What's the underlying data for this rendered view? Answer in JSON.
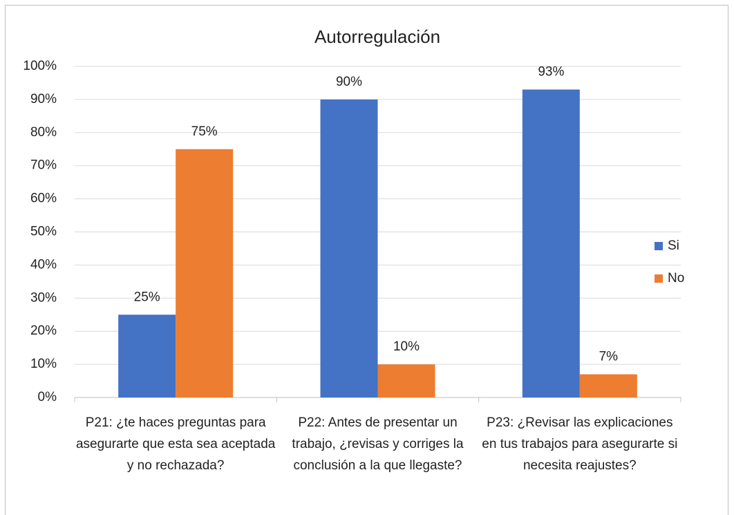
{
  "chart_data": {
    "type": "bar",
    "title": "Autorregulación",
    "categories": [
      "P21: ¿te haces preguntas para asegurarte que esta sea aceptada y no rechazada?",
      "P22: Antes de presentar un trabajo, ¿revisas y corriges la conclusión a la que llegaste?",
      "P23: ¿Revisar las explicaciones en tus trabajos para asegurarte si necesita reajustes?"
    ],
    "series": [
      {
        "name": "Si",
        "color": "#4472c4",
        "values": [
          25,
          90,
          93
        ],
        "value_labels": [
          "25%",
          "90%",
          "93%"
        ]
      },
      {
        "name": "No",
        "color": "#ed7d31",
        "values": [
          75,
          10,
          7
        ],
        "value_labels": [
          "75%",
          "10%",
          "7%"
        ]
      }
    ],
    "ylim": [
      0,
      100
    ],
    "yticks": [
      {
        "value": 0,
        "label": "0%"
      },
      {
        "value": 10,
        "label": "10%"
      },
      {
        "value": 20,
        "label": "20%"
      },
      {
        "value": 30,
        "label": "30%"
      },
      {
        "value": 40,
        "label": "40%"
      },
      {
        "value": 50,
        "label": "50%"
      },
      {
        "value": 60,
        "label": "60%"
      },
      {
        "value": 70,
        "label": "70%"
      },
      {
        "value": 80,
        "label": "80%"
      },
      {
        "value": 90,
        "label": "90%"
      },
      {
        "value": 100,
        "label": "100%"
      }
    ],
    "grid": true,
    "legend": "right"
  }
}
